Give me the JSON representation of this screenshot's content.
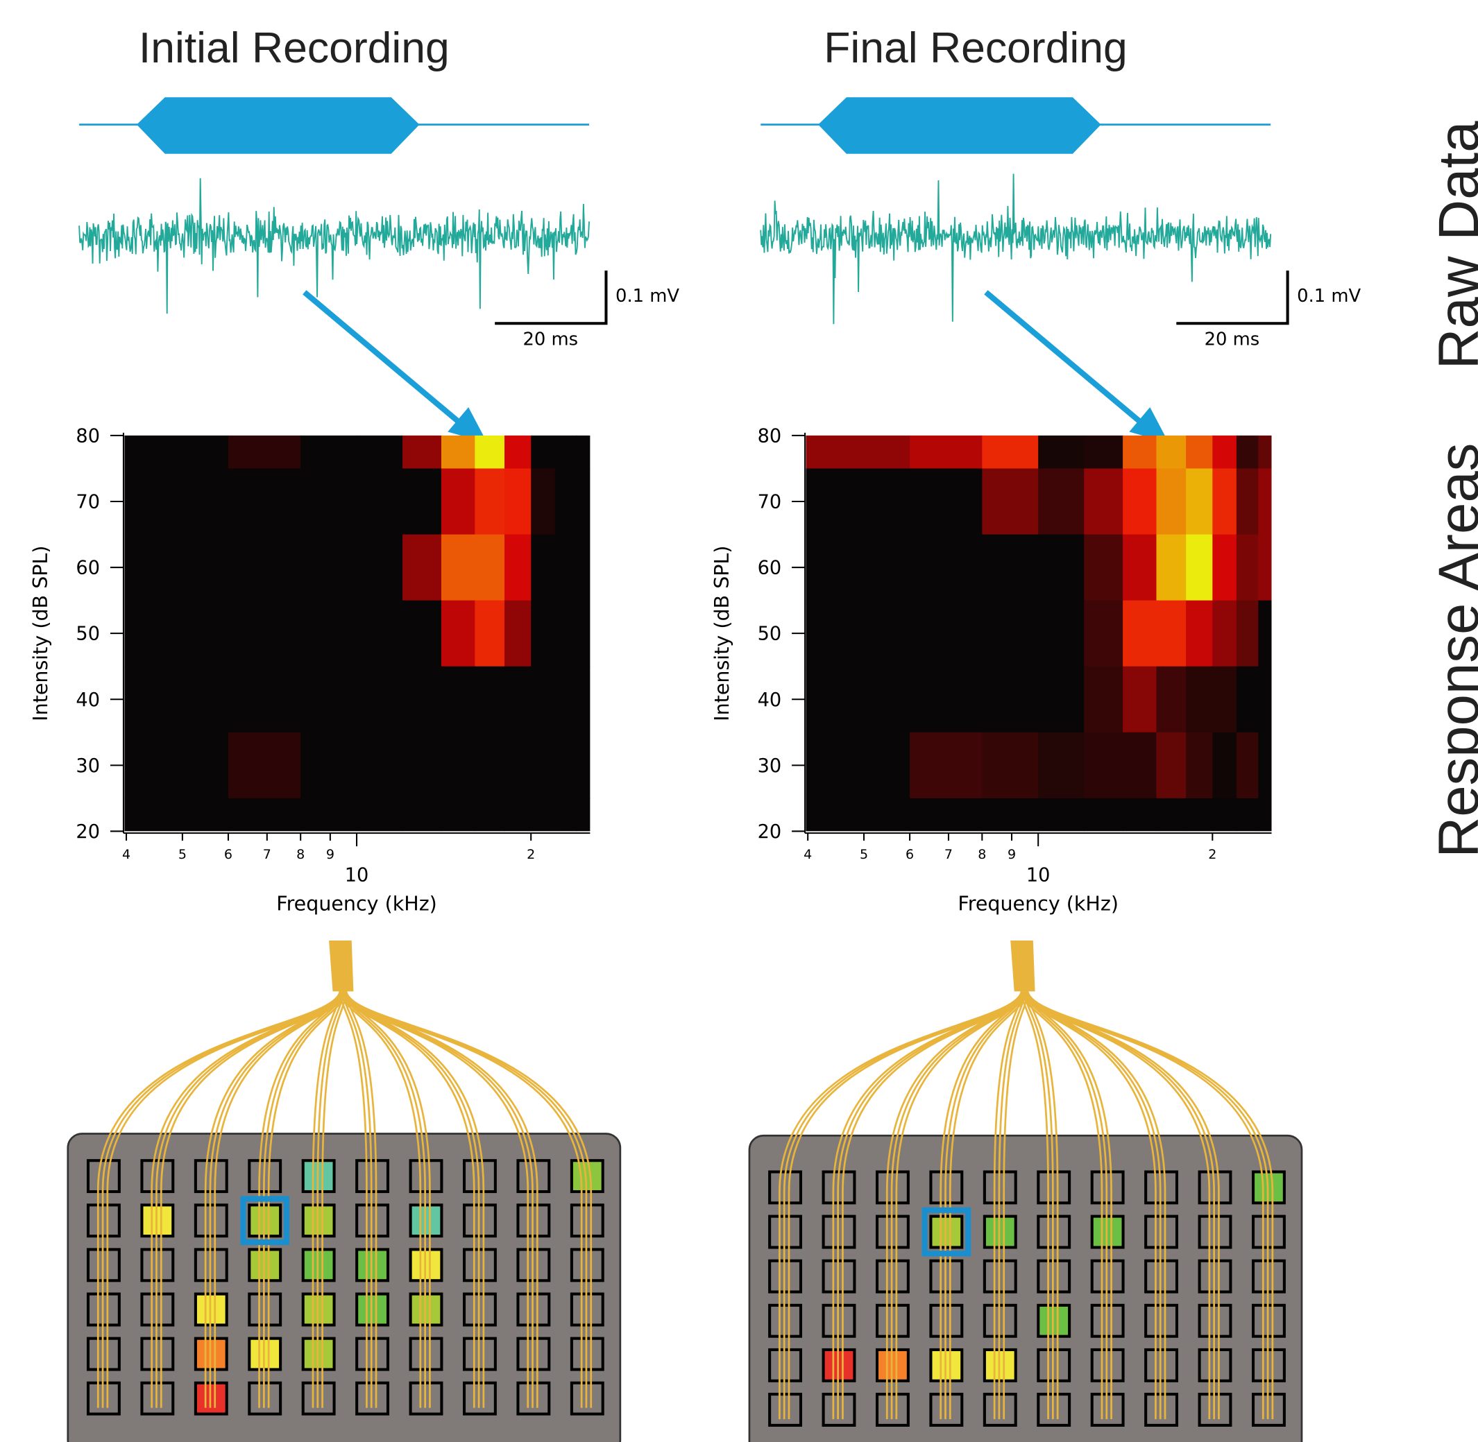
{
  "row_labels": [
    "Raw Data",
    "Response Areas"
  ],
  "chart_data": [
    {
      "type": "heatmap",
      "title": "Initial Recording",
      "scale_bar": {
        "y_label": "0.1 mV",
        "x_label": "20 ms"
      },
      "xlabel": "Frequency (kHz)",
      "ylabel": "Intensity (dB SPL)",
      "xscale": "log",
      "colormap": "hot",
      "xlim": [
        3.97,
        25.3
      ],
      "ylim": [
        20,
        80
      ],
      "xticks": [
        4,
        5,
        6,
        7,
        8,
        9,
        10,
        {
          "value": 20,
          "label": "2"
        }
      ],
      "yticks": [
        20,
        30,
        40,
        50,
        60,
        70,
        80
      ],
      "x_edges": [
        3.97,
        6,
        8,
        10,
        12,
        14,
        16,
        18,
        20,
        22,
        24,
        25.3
      ],
      "y": [
        80,
        70,
        60,
        50,
        40,
        30,
        20
      ],
      "values": [
        [
          0,
          0.08,
          0,
          0,
          0.3,
          0.72,
          0.92,
          0.45,
          0,
          0,
          0
        ],
        [
          0,
          0,
          0,
          0,
          0,
          0.4,
          0.52,
          0.5,
          0.05,
          0,
          0
        ],
        [
          0,
          0,
          0,
          0,
          0.3,
          0.62,
          0.62,
          0.45,
          0,
          0,
          0
        ],
        [
          0,
          0,
          0,
          0,
          0,
          0.4,
          0.52,
          0.3,
          0,
          0,
          0
        ],
        [
          0,
          0,
          0,
          0,
          0,
          0,
          0,
          0,
          0,
          0,
          0
        ],
        [
          0,
          0.08,
          0,
          0,
          0,
          0,
          0,
          0,
          0,
          0,
          0
        ],
        [
          0,
          0,
          0,
          0,
          0,
          0,
          0,
          0,
          0,
          0,
          0
        ]
      ],
      "electrodes": {
        "selected": {
          "row": 1,
          "col": 3
        },
        "active": [
          {
            "row": 0,
            "col": 4,
            "color": "#62c6a2"
          },
          {
            "row": 0,
            "col": 9,
            "color": "#8cc63f"
          },
          {
            "row": 1,
            "col": 1,
            "color": "#f0e63c"
          },
          {
            "row": 1,
            "col": 3,
            "color": "#a6c93a"
          },
          {
            "row": 1,
            "col": 4,
            "color": "#a6c93a"
          },
          {
            "row": 1,
            "col": 6,
            "color": "#62c6a2"
          },
          {
            "row": 2,
            "col": 3,
            "color": "#a6c93a"
          },
          {
            "row": 2,
            "col": 4,
            "color": "#6cbf45"
          },
          {
            "row": 2,
            "col": 5,
            "color": "#6cbf45"
          },
          {
            "row": 2,
            "col": 6,
            "color": "#f0e63c"
          },
          {
            "row": 3,
            "col": 2,
            "color": "#f0e63c"
          },
          {
            "row": 3,
            "col": 4,
            "color": "#a6c93a"
          },
          {
            "row": 3,
            "col": 5,
            "color": "#6cbf45"
          },
          {
            "row": 3,
            "col": 6,
            "color": "#a6c93a"
          },
          {
            "row": 4,
            "col": 2,
            "color": "#f5822a"
          },
          {
            "row": 4,
            "col": 3,
            "color": "#f0e63c"
          },
          {
            "row": 4,
            "col": 4,
            "color": "#a6c93a"
          },
          {
            "row": 5,
            "col": 2,
            "color": "#e8312a"
          }
        ]
      }
    },
    {
      "type": "heatmap",
      "title": "Final Recording",
      "scale_bar": {
        "y_label": "0.1 mV",
        "x_label": "20 ms"
      },
      "xlabel": "Frequency (kHz)",
      "ylabel": "Intensity (dB SPL)",
      "xscale": "log",
      "colormap": "hot",
      "xlim": [
        3.97,
        25.3
      ],
      "ylim": [
        20,
        80
      ],
      "xticks": [
        4,
        5,
        6,
        7,
        8,
        9,
        10,
        {
          "value": 20,
          "label": "2"
        }
      ],
      "yticks": [
        20,
        30,
        40,
        50,
        60,
        70,
        80
      ],
      "x_edges": [
        3.97,
        6,
        8,
        10,
        12,
        14,
        16,
        18,
        20,
        22,
        24,
        25.3
      ],
      "y": [
        80,
        70,
        60,
        50,
        40,
        30,
        20
      ],
      "values": [
        [
          0.3,
          0.38,
          0.52,
          0.03,
          0.05,
          0.62,
          0.75,
          0.62,
          0.45,
          0.1,
          0.2
        ],
        [
          0,
          0,
          0.25,
          0.12,
          0.3,
          0.5,
          0.72,
          0.8,
          0.52,
          0.2,
          0.3
        ],
        [
          0,
          0,
          0,
          0,
          0.15,
          0.4,
          0.8,
          0.92,
          0.45,
          0.25,
          0.3
        ],
        [
          0,
          0,
          0,
          0,
          0.12,
          0.52,
          0.52,
          0.42,
          0.3,
          0.2,
          0
        ],
        [
          0,
          0,
          0,
          0,
          0.1,
          0.28,
          0.12,
          0.07,
          0.07,
          0,
          0
        ],
        [
          0,
          0.12,
          0.1,
          0.06,
          0.08,
          0.08,
          0.2,
          0.1,
          0.02,
          0.1,
          0
        ],
        [
          0,
          0,
          0,
          0,
          0,
          0,
          0,
          0,
          0,
          0,
          0
        ]
      ],
      "electrodes": {
        "selected": {
          "row": 1,
          "col": 3
        },
        "active": [
          {
            "row": 0,
            "col": 9,
            "color": "#6cbf45"
          },
          {
            "row": 1,
            "col": 3,
            "color": "#a6c93a"
          },
          {
            "row": 1,
            "col": 4,
            "color": "#6cbf45"
          },
          {
            "row": 1,
            "col": 6,
            "color": "#6cbf45"
          },
          {
            "row": 3,
            "col": 5,
            "color": "#6cbf45"
          },
          {
            "row": 4,
            "col": 1,
            "color": "#e8312a"
          },
          {
            "row": 4,
            "col": 2,
            "color": "#f5822a"
          },
          {
            "row": 4,
            "col": 3,
            "color": "#f0e63c"
          },
          {
            "row": 4,
            "col": 4,
            "color": "#f0e63c"
          }
        ]
      }
    }
  ]
}
